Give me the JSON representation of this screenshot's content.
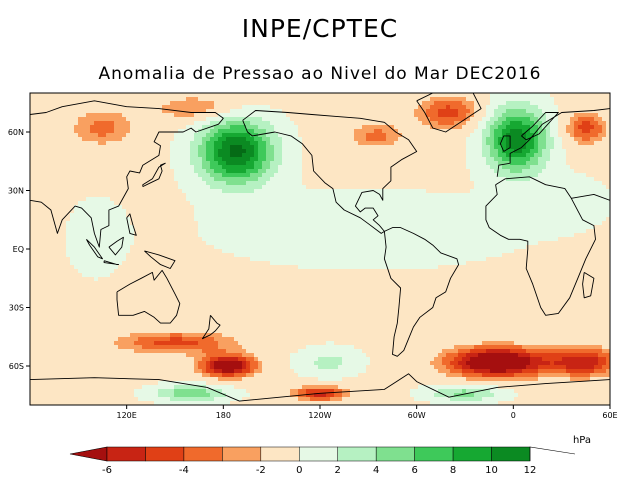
{
  "header": {
    "title": "INPE/CPTEC",
    "subtitle": "Anomalia de Pressao ao Nivel do Mar DEC2016"
  },
  "chart_data": {
    "type": "heatmap",
    "title": "INPE/CPTEC",
    "subtitle": "Anomalia de Pressao ao Nivel do Mar DEC2016",
    "variable": "Sea level pressure anomaly",
    "units": "hPa",
    "projection": "equirectangular",
    "lon_range": [
      60,
      420
    ],
    "lat_range": [
      -80,
      80
    ],
    "x_ticks": [
      {
        "lon": 120,
        "label": "120E"
      },
      {
        "lon": 180,
        "label": "180"
      },
      {
        "lon": 240,
        "label": "120W"
      },
      {
        "lon": 300,
        "label": "60W"
      },
      {
        "lon": 360,
        "label": "0"
      },
      {
        "lon": 420,
        "label": "60E"
      }
    ],
    "y_ticks": [
      {
        "lat": 60,
        "label": "60N"
      },
      {
        "lat": 30,
        "label": "30N"
      },
      {
        "lat": 0,
        "label": "EQ"
      },
      {
        "lat": -30,
        "label": "30S"
      },
      {
        "lat": -60,
        "label": "60S"
      }
    ],
    "colorbar": {
      "units": "hPa",
      "levels": [
        -6,
        -4,
        -2,
        0,
        2,
        4,
        6,
        8,
        10,
        12
      ],
      "level_labels": [
        "-6",
        "-4",
        "-2",
        "0",
        "2",
        "4",
        "6",
        "8",
        "10",
        "12"
      ],
      "bins": [
        {
          "min": null,
          "max": -6,
          "color": "#a50f0f"
        },
        {
          "min": -6,
          "max": -5,
          "color": "#c82414"
        },
        {
          "min": -5,
          "max": -4,
          "color": "#e04016"
        },
        {
          "min": -4,
          "max": -3,
          "color": "#f06a2c"
        },
        {
          "min": -3,
          "max": -2,
          "color": "#f9a060"
        },
        {
          "min": -2,
          "max": 0,
          "color": "#fde6c4"
        },
        {
          "min": 0,
          "max": 2,
          "color": "#e6f9e6"
        },
        {
          "min": 2,
          "max": 4,
          "color": "#b6f1c2"
        },
        {
          "min": 4,
          "max": 6,
          "color": "#7fe08f"
        },
        {
          "min": 6,
          "max": 8,
          "color": "#3ec95a"
        },
        {
          "min": 8,
          "max": 10,
          "color": "#16a832"
        },
        {
          "min": 10,
          "max": 12,
          "color": "#0b8a22"
        },
        {
          "min": 12,
          "max": null,
          "color": "#056b16"
        }
      ]
    },
    "anomaly_centers": [
      {
        "name": "north-pacific-high",
        "lon": 188,
        "lat": 50,
        "value": 13,
        "rlon": 22,
        "rlat": 16
      },
      {
        "name": "north-atlantic-high",
        "lon": 362,
        "lat": 56,
        "value": 12,
        "rlon": 18,
        "rlat": 16
      },
      {
        "name": "greenland-low",
        "lon": 320,
        "lat": 70,
        "value": -4,
        "rlon": 22,
        "rlat": 9
      },
      {
        "name": "hudson-low",
        "lon": 275,
        "lat": 58,
        "value": -3,
        "rlon": 18,
        "rlat": 7
      },
      {
        "name": "siberia-low",
        "lon": 405,
        "lat": 62,
        "value": -4,
        "rlon": 14,
        "rlat": 9
      },
      {
        "name": "aleutian-low",
        "lon": 165,
        "lat": 72,
        "value": -3,
        "rlon": 28,
        "rlat": 7
      },
      {
        "name": "west-pacific-low",
        "lon": 105,
        "lat": 62,
        "value": -3,
        "rlon": 22,
        "rlat": 10
      },
      {
        "name": "south-atlantic-low",
        "lon": 350,
        "lat": -58,
        "value": -8,
        "rlon": 32,
        "rlat": 8
      },
      {
        "name": "south-indian-low",
        "lon": 405,
        "lat": -58,
        "value": -5,
        "rlon": 22,
        "rlat": 8
      },
      {
        "name": "southwest-pacific-low",
        "lon": 183,
        "lat": -60,
        "value": -7,
        "rlon": 18,
        "rlat": 6
      },
      {
        "name": "south-pacific-low-east",
        "lon": 240,
        "lat": -74,
        "value": -5,
        "rlon": 18,
        "rlat": 4
      },
      {
        "name": "south-ocean-low-band",
        "lon": 150,
        "lat": -48,
        "value": -4,
        "rlon": 40,
        "rlat": 6
      },
      {
        "name": "southern-high-west",
        "lon": 160,
        "lat": -74,
        "value": 6,
        "rlon": 22,
        "rlat": 4
      },
      {
        "name": "southern-high-east",
        "lon": 330,
        "lat": -74,
        "value": 5,
        "rlon": 22,
        "rlat": 4
      },
      {
        "name": "southeast-pacific-high",
        "lon": 245,
        "lat": -58,
        "value": 3,
        "rlon": 18,
        "rlat": 7
      },
      {
        "name": "tropics-positive",
        "lon": 270,
        "lat": 10,
        "value": 1,
        "rlon": 110,
        "rlat": 22
      },
      {
        "name": "indian-positive",
        "lon": 100,
        "lat": 5,
        "value": 0.6,
        "rlon": 25,
        "rlat": 30
      },
      {
        "name": "north-africa-positive",
        "lon": 390,
        "lat": 25,
        "value": 1.5,
        "rlon": 25,
        "rlat": 12
      }
    ]
  }
}
